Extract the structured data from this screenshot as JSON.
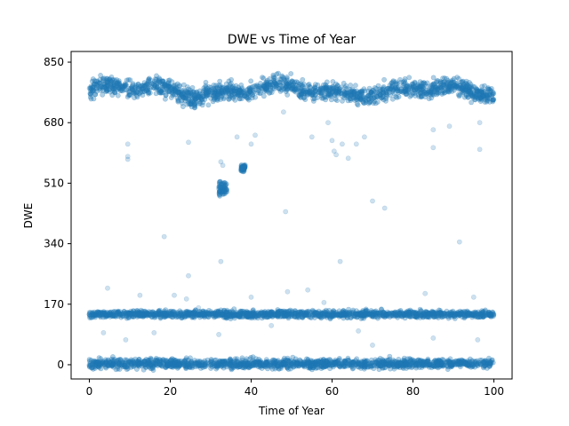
{
  "chart_data": {
    "type": "scatter",
    "title": "DWE vs Time of Year",
    "xlabel": "Time of Year",
    "ylabel": "DWE",
    "xlim": [
      -4.5,
      104.5
    ],
    "ylim": [
      -40,
      880
    ],
    "xticks": [
      0,
      20,
      40,
      60,
      80,
      100
    ],
    "yticks": [
      0,
      170,
      340,
      510,
      680,
      850
    ],
    "grid": false,
    "color": "#1f77b4",
    "series": [
      {
        "clusters": [
          {
            "x_range": [
              0,
              100
            ],
            "y_center": 770,
            "y_spread": 22,
            "density": "dense"
          },
          {
            "x_range": [
              0,
              100
            ],
            "y_center": 142,
            "y_spread": 9,
            "density": "dense"
          },
          {
            "x_range": [
              0,
              100
            ],
            "y_center": 3,
            "y_spread": 12,
            "density": "dense"
          },
          {
            "x_range": [
              32,
              34
            ],
            "y_center": 495,
            "y_spread": 20,
            "density": "medium"
          },
          {
            "x_range": [
              37.5,
              38.5
            ],
            "y_center": 552,
            "y_spread": 8,
            "density": "medium"
          }
        ],
        "outliers": [
          [
            9.5,
            620
          ],
          [
            9.5,
            585
          ],
          [
            9.5,
            577
          ],
          [
            18.5,
            360
          ],
          [
            24.5,
            625
          ],
          [
            24.5,
            250
          ],
          [
            32.5,
            570
          ],
          [
            32.5,
            290
          ],
          [
            33,
            560
          ],
          [
            36.5,
            640
          ],
          [
            40,
            620
          ],
          [
            41,
            645
          ],
          [
            48.5,
            430
          ],
          [
            48,
            710
          ],
          [
            55,
            640
          ],
          [
            59,
            680
          ],
          [
            60,
            630
          ],
          [
            60.5,
            600
          ],
          [
            61,
            590
          ],
          [
            62,
            290
          ],
          [
            62.5,
            620
          ],
          [
            64,
            580
          ],
          [
            66,
            620
          ],
          [
            68,
            640
          ],
          [
            70,
            460
          ],
          [
            73,
            440
          ],
          [
            85,
            610
          ],
          [
            85,
            660
          ],
          [
            89,
            670
          ],
          [
            91.5,
            345
          ],
          [
            96.5,
            605
          ],
          [
            96.5,
            680
          ],
          [
            4.5,
            215
          ],
          [
            12.5,
            195
          ],
          [
            21,
            195
          ],
          [
            24,
            185
          ],
          [
            40,
            190
          ],
          [
            49,
            205
          ],
          [
            54,
            210
          ],
          [
            83,
            200
          ],
          [
            95,
            190
          ],
          [
            9,
            70
          ],
          [
            3.5,
            90
          ],
          [
            16,
            90
          ],
          [
            32,
            85
          ],
          [
            66.5,
            95
          ],
          [
            85,
            75
          ],
          [
            96,
            70
          ],
          [
            70,
            55
          ],
          [
            45,
            110
          ],
          [
            27,
            160
          ],
          [
            58,
            175
          ]
        ]
      }
    ]
  }
}
